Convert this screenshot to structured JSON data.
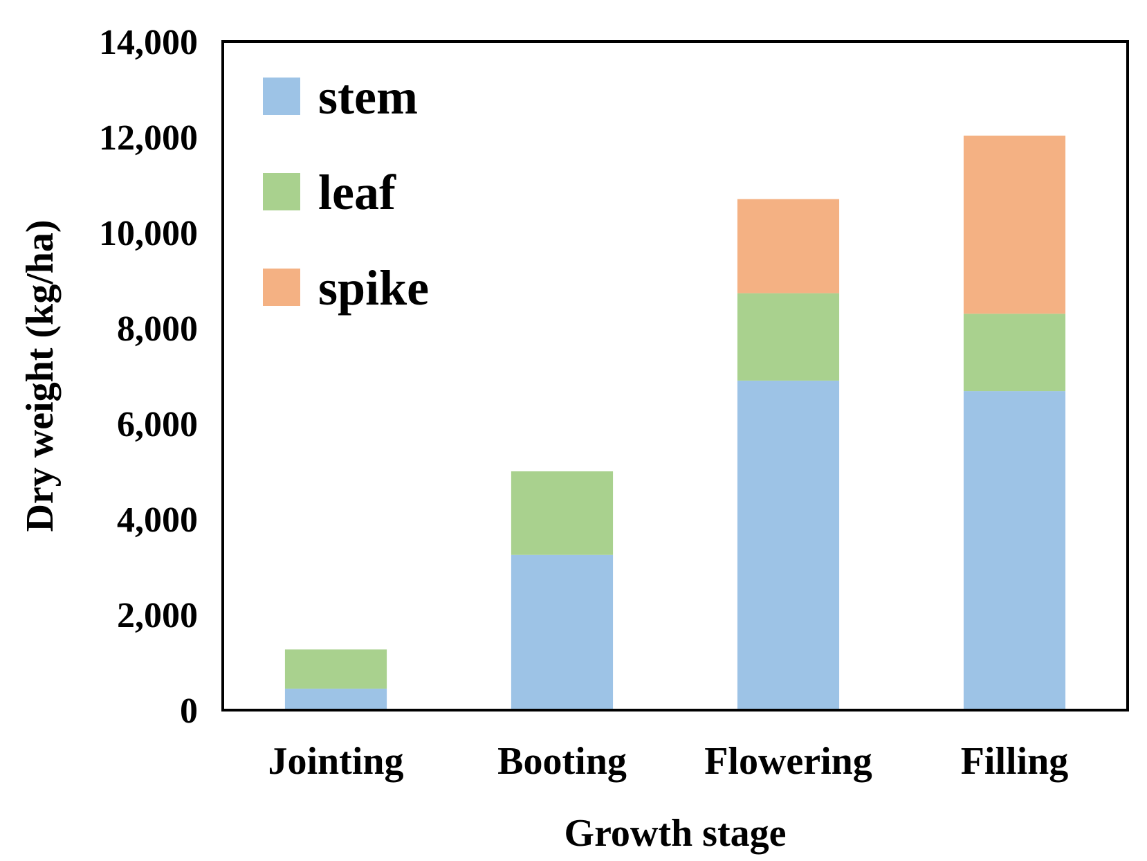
{
  "chart_data": {
    "type": "bar",
    "stacked": true,
    "title": "",
    "xlabel": "Growth stage",
    "ylabel": "Dry weight (kg/ha)",
    "categories": [
      "Jointing",
      "Booting",
      "Flowering",
      "Filling"
    ],
    "ylim": [
      0,
      14000
    ],
    "yticks": [
      0,
      2000,
      4000,
      6000,
      8000,
      10000,
      12000,
      14000
    ],
    "ytick_labels": [
      "0",
      "2,000",
      "4,000",
      "6,000",
      "8,000",
      "10,000",
      "12,000",
      "14,000"
    ],
    "grid": false,
    "legend_position": "top-left",
    "series": [
      {
        "name": "stem",
        "color": "#9DC3E6",
        "values": [
          450,
          3250,
          6900,
          6680
        ]
      },
      {
        "name": "leaf",
        "color": "#A9D18E",
        "values": [
          820,
          1750,
          1830,
          1620
        ]
      },
      {
        "name": "spike",
        "color": "#F4B183",
        "values": [
          0,
          0,
          1970,
          3730
        ]
      }
    ]
  }
}
